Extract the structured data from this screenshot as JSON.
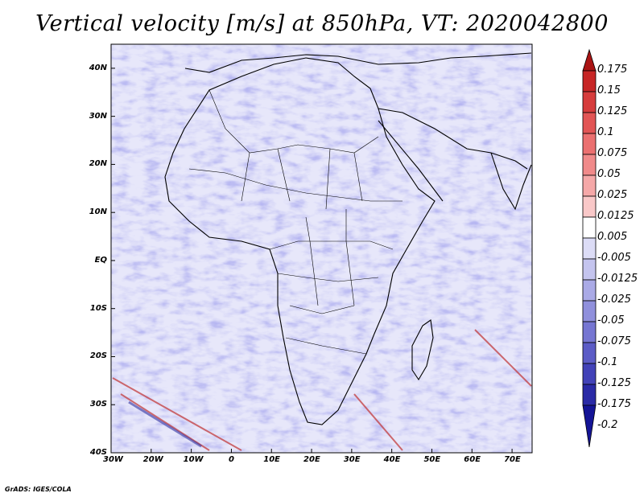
{
  "title": "Vertical velocity [m/s] at 850hPa, VT: 2020042800",
  "footer": "GrADS: IGES/COLA",
  "map": {
    "lat_labels": [
      "40N",
      "30N",
      "20N",
      "10N",
      "EQ",
      "10S",
      "20S",
      "30S",
      "40S"
    ],
    "lon_labels": [
      "30W",
      "20W",
      "10W",
      "0",
      "10E",
      "20E",
      "30E",
      "40E",
      "50E",
      "60E",
      "70E"
    ],
    "extent": {
      "lon_min": -30,
      "lon_max": 75,
      "lat_min": -40,
      "lat_max": 45
    }
  },
  "colorbar": {
    "labels": [
      "0.175",
      "0.15",
      "0.125",
      "0.1",
      "0.075",
      "0.05",
      "0.025",
      "0.0125",
      "0.005",
      "-0.005",
      "-0.0125",
      "-0.025",
      "-0.05",
      "-0.075",
      "-0.1",
      "-0.125",
      "-0.175",
      "-0.2"
    ],
    "colors": [
      "#aa1414",
      "#c72626",
      "#d63c3c",
      "#e25555",
      "#eb7070",
      "#f08a8a",
      "#f5a8a8",
      "#f9c8c8",
      "#ffffff",
      "#dcdcf6",
      "#c4c4ee",
      "#aaaae6",
      "#9090dc",
      "#7676d2",
      "#5c5cc6",
      "#4242b8",
      "#2a2aa6",
      "#141496"
    ]
  }
}
